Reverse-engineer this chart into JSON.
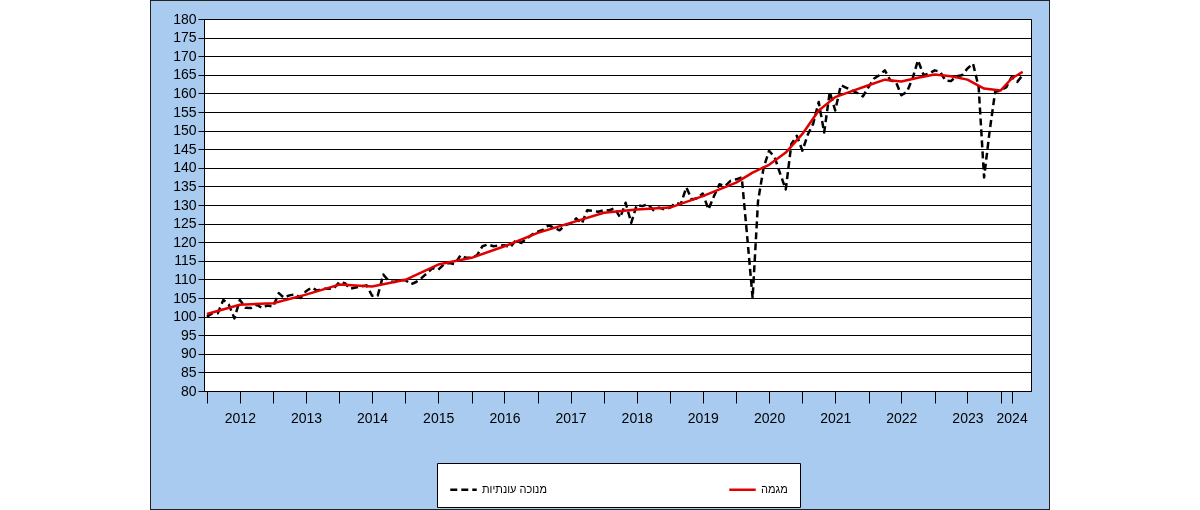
{
  "chart_data": {
    "type": "line",
    "x": [
      "2012-01",
      "2012-02",
      "2012-03",
      "2012-04",
      "2012-05",
      "2012-06",
      "2012-07",
      "2012-08",
      "2012-09",
      "2012-10",
      "2012-11",
      "2012-12",
      "2013-01",
      "2013-02",
      "2013-03",
      "2013-04",
      "2013-05",
      "2013-06",
      "2013-07",
      "2013-08",
      "2013-09",
      "2013-10",
      "2013-11",
      "2013-12",
      "2014-01",
      "2014-02",
      "2014-03",
      "2014-04",
      "2014-05",
      "2014-06",
      "2014-07",
      "2014-08",
      "2014-09",
      "2014-10",
      "2014-11",
      "2014-12",
      "2015-01",
      "2015-02",
      "2015-03",
      "2015-04",
      "2015-05",
      "2015-06",
      "2015-07",
      "2015-08",
      "2015-09",
      "2015-10",
      "2015-11",
      "2015-12",
      "2016-01",
      "2016-02",
      "2016-03",
      "2016-04",
      "2016-05",
      "2016-06",
      "2016-07",
      "2016-08",
      "2016-09",
      "2016-10",
      "2016-11",
      "2016-12",
      "2017-01",
      "2017-02",
      "2017-03",
      "2017-04",
      "2017-05",
      "2017-06",
      "2017-07",
      "2017-08",
      "2017-09",
      "2017-10",
      "2017-11",
      "2017-12",
      "2018-01",
      "2018-02",
      "2018-03",
      "2018-04",
      "2018-05",
      "2018-06",
      "2018-07",
      "2018-08",
      "2018-09",
      "2018-10",
      "2018-11",
      "2018-12",
      "2019-01",
      "2019-02",
      "2019-03",
      "2019-04",
      "2019-05",
      "2019-06",
      "2019-07",
      "2019-08",
      "2019-09",
      "2019-10",
      "2019-11",
      "2019-12",
      "2020-01",
      "2020-02",
      "2020-03",
      "2020-04",
      "2020-05",
      "2020-06",
      "2020-07",
      "2020-08",
      "2020-09",
      "2020-10",
      "2020-11",
      "2020-12",
      "2021-01",
      "2021-02",
      "2021-03",
      "2021-04",
      "2021-05",
      "2021-06",
      "2021-07",
      "2021-08",
      "2021-09",
      "2021-10",
      "2021-11",
      "2021-12",
      "2022-01",
      "2022-02",
      "2022-03",
      "2022-04",
      "2022-05",
      "2022-06",
      "2022-07",
      "2022-08",
      "2022-09",
      "2022-10",
      "2022-11",
      "2022-12",
      "2023-01",
      "2023-02",
      "2023-03",
      "2023-04",
      "2023-05",
      "2023-06",
      "2023-07",
      "2023-08",
      "2023-09",
      "2023-10",
      "2023-11",
      "2023-12",
      "2024-01",
      "2024-02",
      "2024-03",
      "2024-04",
      "2024-05"
    ],
    "series": [
      {
        "name": "מנוכה עונתיות",
        "color": "#000000",
        "line_style": "dashed",
        "values": [
          100.0,
          100.9,
          100.9,
          104.5,
          103.2,
          99.5,
          104.5,
          102.4,
          102.3,
          103.2,
          102.3,
          103.0,
          102.7,
          106.3,
          105.1,
          105.7,
          106.0,
          105.0,
          106.8,
          107.8,
          107.0,
          107.5,
          107.5,
          107.5,
          109.3,
          109.0,
          107.5,
          107.8,
          108.1,
          108.4,
          105.6,
          105.6,
          111.3,
          109.6,
          109.3,
          109.9,
          109.8,
          108.7,
          109.3,
          110.4,
          111.7,
          113.1,
          112.6,
          114.0,
          114.4,
          114.1,
          116.5,
          115.8,
          115.8,
          116.5,
          118.9,
          119.4,
          118.9,
          119.1,
          119.2,
          118.6,
          120.5,
          119.8,
          121.0,
          122.1,
          122.8,
          123.4,
          124.5,
          123.9,
          123.2,
          124.6,
          125.0,
          126.4,
          125.0,
          128.6,
          128.4,
          128.2,
          128.6,
          128.6,
          129.1,
          126.6,
          130.6,
          125.2,
          130.0,
          129.7,
          130.2,
          128.6,
          129.3,
          128.8,
          129.3,
          130.6,
          130.2,
          134.7,
          131.5,
          131.8,
          133.1,
          128.8,
          132.4,
          135.6,
          135.1,
          136.5,
          136.9,
          137.4,
          122.1,
          105.0,
          131.1,
          140.1,
          144.6,
          142.8,
          138.3,
          134.2,
          146.4,
          148.6,
          144.6,
          149.1,
          151.8,
          157.7,
          149.5,
          160.4,
          155.4,
          162.2,
          161.5,
          160.8,
          160.1,
          159.2,
          161.7,
          164.0,
          164.9,
          166.2,
          163.5,
          163.1,
          159.5,
          160.4,
          164.0,
          168.9,
          164.9,
          165.3,
          166.2,
          165.8,
          163.5,
          163.3,
          164.6,
          164.9,
          166.7,
          168.0,
          161.7,
          137.4,
          150.0,
          160.4,
          160.8,
          161.7,
          164.4,
          163.1,
          164.9
        ]
      },
      {
        "name": "מגמה",
        "color": "#e00000",
        "line_style": "solid",
        "x": [
          "2012-01",
          "2012-07",
          "2013-01",
          "2013-07",
          "2014-01",
          "2014-07",
          "2015-01",
          "2015-07",
          "2016-01",
          "2016-07",
          "2017-01",
          "2017-07",
          "2018-01",
          "2018-07",
          "2019-01",
          "2019-07",
          "2020-01",
          "2020-04",
          "2020-07",
          "2020-10",
          "2021-01",
          "2021-04",
          "2021-07",
          "2021-10",
          "2022-01",
          "2022-04",
          "2022-07",
          "2022-10",
          "2023-01",
          "2023-04",
          "2023-07",
          "2023-10",
          "2024-01",
          "2024-03",
          "2024-05"
        ],
        "values": [
          100.7,
          103.2,
          103.6,
          105.9,
          108.6,
          108.1,
          109.9,
          114.0,
          115.8,
          118.9,
          122.5,
          125.2,
          127.9,
          128.8,
          129.3,
          132.4,
          136.0,
          138.7,
          140.8,
          144.1,
          149.1,
          155.4,
          159.0,
          160.6,
          162.2,
          163.7,
          163.2,
          164.2,
          165.1,
          164.6,
          163.7,
          161.3,
          160.8,
          164.0,
          165.8
        ]
      }
    ],
    "xlim": [
      "2011-12-16",
      "2024-06-16"
    ],
    "xticks": [
      {
        "value": "2012",
        "label": null
      },
      {
        "value": "2012-07",
        "label": "2012"
      },
      {
        "value": "2013",
        "label": null
      },
      {
        "value": "2013-07",
        "label": "2013"
      },
      {
        "value": "2014",
        "label": null
      },
      {
        "value": "2014-07",
        "label": "2014"
      },
      {
        "value": "2015",
        "label": null
      },
      {
        "value": "2015-07",
        "label": "2015"
      },
      {
        "value": "2016",
        "label": null
      },
      {
        "value": "2016-07",
        "label": "2016"
      },
      {
        "value": "2017",
        "label": null
      },
      {
        "value": "2017-07",
        "label": "2017"
      },
      {
        "value": "2018",
        "label": null
      },
      {
        "value": "2018-07",
        "label": "2018"
      },
      {
        "value": "2019",
        "label": null
      },
      {
        "value": "2019-07",
        "label": "2019"
      },
      {
        "value": "2020",
        "label": null
      },
      {
        "value": "2020-07",
        "label": "2020"
      },
      {
        "value": "2021",
        "label": null
      },
      {
        "value": "2021-07",
        "label": "2021"
      },
      {
        "value": "2022",
        "label": null
      },
      {
        "value": "2022-07",
        "label": "2022"
      },
      {
        "value": "2023",
        "label": null
      },
      {
        "value": "2023-07",
        "label": "2023"
      },
      {
        "value": "2024",
        "label": null
      },
      {
        "value": "2024-03",
        "label": "2024"
      }
    ],
    "ylim": [
      80,
      180
    ],
    "yticks": [
      80,
      85,
      90,
      95,
      100,
      105,
      110,
      115,
      120,
      125,
      130,
      135,
      140,
      145,
      150,
      155,
      160,
      165,
      170,
      175,
      180
    ],
    "grid": "y",
    "legend": "bottom"
  }
}
